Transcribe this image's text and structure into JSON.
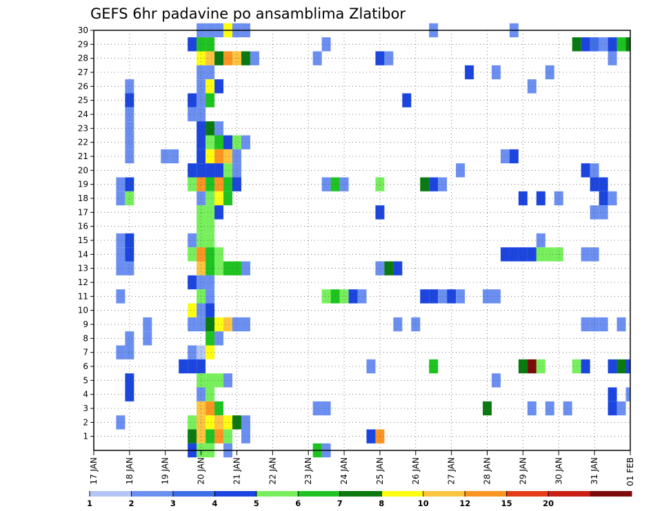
{
  "chart_data": {
    "type": "heatmap",
    "title": "GEFS 6hr padavine po ansamblima Zlatibor",
    "xlabel": "",
    "ylabel": "",
    "y_categories": [
      "1",
      "2",
      "3",
      "4",
      "5",
      "6",
      "7",
      "8",
      "9",
      "10",
      "11",
      "12",
      "13",
      "14",
      "15",
      "16",
      "17",
      "18",
      "19",
      "20",
      "21",
      "22",
      "23",
      "24",
      "25",
      "26",
      "27",
      "28",
      "29",
      "30"
    ],
    "x_tick_labels": [
      "17 JAN",
      "18 JAN",
      "19 JAN",
      "20 JAN",
      "21 JAN",
      "22 JAN",
      "23 JAN",
      "24 JAN",
      "25 JAN",
      "26 JAN",
      "27 JAN",
      "28 JAN",
      "29 JAN",
      "30 JAN",
      "31 JAN",
      "01 FEB"
    ],
    "x_unit": "6-hour step (0 = 17 JAN 00Z)",
    "xlim": [
      0,
      60
    ],
    "ylim": [
      0.5,
      30.5
    ],
    "grid": true,
    "legend_position": "bottom",
    "color_scale": {
      "labels": [
        "1",
        "2",
        "3",
        "4",
        "5",
        "6",
        "7",
        "8",
        "10",
        "12",
        "15",
        "20"
      ],
      "colors": [
        "#b4c5f5",
        "#6b8ff0",
        "#3f6fe6",
        "#1b45de",
        "#77ef5c",
        "#1fc321",
        "#0a7a10",
        "#fdfd12",
        "#fdc440",
        "#fb9522",
        "#e33d17",
        "#c81e14",
        "#7b0a0a"
      ]
    },
    "cells": [
      [
        12,
        30,
        1
      ],
      [
        13,
        30,
        1
      ],
      [
        14,
        30,
        1
      ],
      [
        15,
        30,
        7
      ],
      [
        16,
        30,
        1
      ],
      [
        17,
        30,
        1
      ],
      [
        38,
        30,
        1
      ],
      [
        47,
        30,
        1
      ],
      [
        11,
        29,
        3
      ],
      [
        12,
        29,
        5
      ],
      [
        13,
        29,
        5
      ],
      [
        26,
        29,
        1
      ],
      [
        54,
        29,
        6
      ],
      [
        55,
        29,
        3
      ],
      [
        56,
        29,
        2
      ],
      [
        57,
        29,
        1
      ],
      [
        58,
        29,
        3
      ],
      [
        59,
        29,
        5
      ],
      [
        60,
        29,
        6
      ],
      [
        61,
        29,
        4
      ],
      [
        62,
        29,
        2
      ],
      [
        12,
        28,
        7
      ],
      [
        13,
        28,
        8
      ],
      [
        14,
        28,
        6
      ],
      [
        15,
        28,
        9
      ],
      [
        16,
        28,
        8
      ],
      [
        17,
        28,
        6
      ],
      [
        18,
        28,
        1
      ],
      [
        25,
        28,
        1
      ],
      [
        32,
        28,
        3
      ],
      [
        33,
        28,
        1
      ],
      [
        58,
        28,
        1
      ],
      [
        62,
        28,
        1
      ],
      [
        12,
        27,
        1
      ],
      [
        13,
        27,
        1
      ],
      [
        42,
        27,
        3
      ],
      [
        45,
        27,
        1
      ],
      [
        51,
        27,
        1
      ],
      [
        4,
        26,
        1
      ],
      [
        12,
        26,
        1
      ],
      [
        13,
        26,
        7
      ],
      [
        14,
        26,
        3
      ],
      [
        49,
        26,
        1
      ],
      [
        4,
        25,
        3
      ],
      [
        11,
        25,
        3
      ],
      [
        12,
        25,
        1
      ],
      [
        13,
        25,
        5
      ],
      [
        35,
        25,
        3
      ],
      [
        4,
        24,
        1
      ],
      [
        11,
        24,
        1
      ],
      [
        12,
        24,
        1
      ],
      [
        4,
        23,
        1
      ],
      [
        12,
        23,
        3
      ],
      [
        13,
        23,
        6
      ],
      [
        14,
        23,
        1
      ],
      [
        4,
        22,
        1
      ],
      [
        12,
        22,
        3
      ],
      [
        13,
        22,
        4
      ],
      [
        14,
        22,
        5
      ],
      [
        15,
        22,
        3
      ],
      [
        16,
        22,
        4
      ],
      [
        17,
        22,
        1
      ],
      [
        4,
        21,
        1
      ],
      [
        8,
        21,
        1
      ],
      [
        9,
        21,
        1
      ],
      [
        12,
        21,
        3
      ],
      [
        13,
        21,
        7
      ],
      [
        14,
        21,
        9
      ],
      [
        15,
        21,
        8
      ],
      [
        16,
        21,
        1
      ],
      [
        46,
        21,
        1
      ],
      [
        47,
        21,
        3
      ],
      [
        62,
        21,
        1
      ],
      [
        63,
        21,
        1
      ],
      [
        11,
        20,
        3
      ],
      [
        12,
        20,
        3
      ],
      [
        13,
        20,
        3
      ],
      [
        14,
        20,
        3
      ],
      [
        15,
        20,
        4
      ],
      [
        16,
        20,
        1
      ],
      [
        41,
        20,
        1
      ],
      [
        55,
        20,
        3
      ],
      [
        56,
        20,
        1
      ],
      [
        3,
        19,
        1
      ],
      [
        4,
        19,
        3
      ],
      [
        11,
        19,
        4
      ],
      [
        12,
        19,
        9
      ],
      [
        13,
        19,
        5
      ],
      [
        14,
        19,
        9
      ],
      [
        15,
        19,
        5
      ],
      [
        16,
        19,
        3
      ],
      [
        26,
        19,
        1
      ],
      [
        27,
        19,
        5
      ],
      [
        28,
        19,
        1
      ],
      [
        32,
        19,
        4
      ],
      [
        37,
        19,
        6
      ],
      [
        38,
        19,
        3
      ],
      [
        39,
        19,
        1
      ],
      [
        56,
        19,
        3
      ],
      [
        57,
        19,
        3
      ],
      [
        3,
        18,
        1
      ],
      [
        4,
        18,
        4
      ],
      [
        12,
        18,
        1
      ],
      [
        13,
        18,
        4
      ],
      [
        14,
        18,
        7
      ],
      [
        15,
        18,
        5
      ],
      [
        48,
        18,
        3
      ],
      [
        50,
        18,
        3
      ],
      [
        52,
        18,
        1
      ],
      [
        57,
        18,
        3
      ],
      [
        58,
        18,
        1
      ],
      [
        12,
        17,
        4
      ],
      [
        13,
        17,
        4
      ],
      [
        14,
        17,
        3
      ],
      [
        32,
        17,
        3
      ],
      [
        56,
        17,
        1
      ],
      [
        57,
        17,
        1
      ],
      [
        12,
        16,
        4
      ],
      [
        13,
        16,
        4
      ],
      [
        3,
        15,
        1
      ],
      [
        4,
        15,
        3
      ],
      [
        11,
        15,
        1
      ],
      [
        12,
        15,
        4
      ],
      [
        13,
        15,
        4
      ],
      [
        50,
        15,
        1
      ],
      [
        3,
        14,
        1
      ],
      [
        4,
        14,
        3
      ],
      [
        11,
        14,
        4
      ],
      [
        12,
        14,
        9
      ],
      [
        13,
        14,
        5
      ],
      [
        14,
        14,
        4
      ],
      [
        46,
        14,
        3
      ],
      [
        47,
        14,
        3
      ],
      [
        48,
        14,
        3
      ],
      [
        49,
        14,
        3
      ],
      [
        50,
        14,
        4
      ],
      [
        51,
        14,
        4
      ],
      [
        52,
        14,
        4
      ],
      [
        55,
        14,
        1
      ],
      [
        56,
        14,
        1
      ],
      [
        3,
        13,
        1
      ],
      [
        4,
        13,
        1
      ],
      [
        12,
        13,
        8
      ],
      [
        13,
        13,
        5
      ],
      [
        14,
        13,
        4
      ],
      [
        15,
        13,
        5
      ],
      [
        16,
        13,
        5
      ],
      [
        17,
        13,
        1
      ],
      [
        32,
        13,
        1
      ],
      [
        33,
        13,
        6
      ],
      [
        34,
        13,
        3
      ],
      [
        11,
        12,
        3
      ],
      [
        12,
        12,
        1
      ],
      [
        13,
        12,
        1
      ],
      [
        3,
        11,
        1
      ],
      [
        12,
        11,
        4
      ],
      [
        13,
        11,
        1
      ],
      [
        26,
        11,
        4
      ],
      [
        27,
        11,
        5
      ],
      [
        28,
        11,
        4
      ],
      [
        29,
        11,
        3
      ],
      [
        30,
        11,
        1
      ],
      [
        37,
        11,
        3
      ],
      [
        38,
        11,
        3
      ],
      [
        39,
        11,
        1
      ],
      [
        40,
        11,
        3
      ],
      [
        41,
        11,
        1
      ],
      [
        44,
        11,
        1
      ],
      [
        45,
        11,
        1
      ],
      [
        11,
        10,
        7
      ],
      [
        12,
        10,
        1
      ],
      [
        13,
        10,
        3
      ],
      [
        6,
        9,
        1
      ],
      [
        11,
        9,
        1
      ],
      [
        12,
        9,
        1
      ],
      [
        13,
        9,
        6
      ],
      [
        14,
        9,
        7
      ],
      [
        15,
        9,
        8
      ],
      [
        16,
        9,
        1
      ],
      [
        17,
        9,
        1
      ],
      [
        34,
        9,
        1
      ],
      [
        36,
        9,
        1
      ],
      [
        55,
        9,
        1
      ],
      [
        56,
        9,
        1
      ],
      [
        57,
        9,
        1
      ],
      [
        59,
        9,
        1
      ],
      [
        4,
        8,
        1
      ],
      [
        6,
        8,
        1
      ],
      [
        13,
        8,
        5
      ],
      [
        14,
        8,
        1
      ],
      [
        3,
        7,
        1
      ],
      [
        4,
        7,
        1
      ],
      [
        11,
        7,
        1
      ],
      [
        12,
        7,
        13
      ],
      [
        13,
        7,
        7
      ],
      [
        10,
        6,
        3
      ],
      [
        11,
        6,
        3
      ],
      [
        12,
        6,
        3
      ],
      [
        31,
        6,
        1
      ],
      [
        38,
        6,
        5
      ],
      [
        48,
        6,
        6
      ],
      [
        49,
        6,
        12
      ],
      [
        50,
        6,
        4
      ],
      [
        54,
        6,
        4
      ],
      [
        55,
        6,
        3
      ],
      [
        58,
        6,
        3
      ],
      [
        59,
        6,
        6
      ],
      [
        60,
        6,
        3
      ],
      [
        4,
        5,
        3
      ],
      [
        12,
        5,
        4
      ],
      [
        13,
        5,
        4
      ],
      [
        14,
        5,
        4
      ],
      [
        15,
        5,
        1
      ],
      [
        45,
        5,
        1
      ],
      [
        4,
        4,
        3
      ],
      [
        12,
        4,
        1
      ],
      [
        13,
        4,
        4
      ],
      [
        58,
        4,
        3
      ],
      [
        60,
        4,
        1
      ],
      [
        12,
        3,
        8
      ],
      [
        13,
        3,
        9
      ],
      [
        14,
        3,
        5
      ],
      [
        25,
        3,
        1
      ],
      [
        26,
        3,
        1
      ],
      [
        44,
        3,
        6
      ],
      [
        49,
        3,
        1
      ],
      [
        51,
        3,
        1
      ],
      [
        53,
        3,
        1
      ],
      [
        58,
        3,
        3
      ],
      [
        59,
        3,
        1
      ],
      [
        3,
        2,
        1
      ],
      [
        11,
        2,
        4
      ],
      [
        12,
        2,
        8
      ],
      [
        13,
        2,
        7
      ],
      [
        14,
        2,
        8
      ],
      [
        15,
        2,
        7
      ],
      [
        16,
        2,
        6
      ],
      [
        17,
        2,
        1
      ],
      [
        11,
        1,
        6
      ],
      [
        12,
        1,
        8
      ],
      [
        13,
        1,
        5
      ],
      [
        14,
        1,
        9
      ],
      [
        15,
        1,
        4
      ],
      [
        17,
        1,
        1
      ],
      [
        31,
        1,
        3
      ],
      [
        32,
        1,
        9
      ],
      [
        11,
        0,
        3
      ],
      [
        12,
        0,
        4
      ],
      [
        13,
        0,
        4
      ],
      [
        15,
        0,
        1
      ],
      [
        25,
        0,
        5
      ],
      [
        26,
        0,
        1
      ]
    ]
  }
}
